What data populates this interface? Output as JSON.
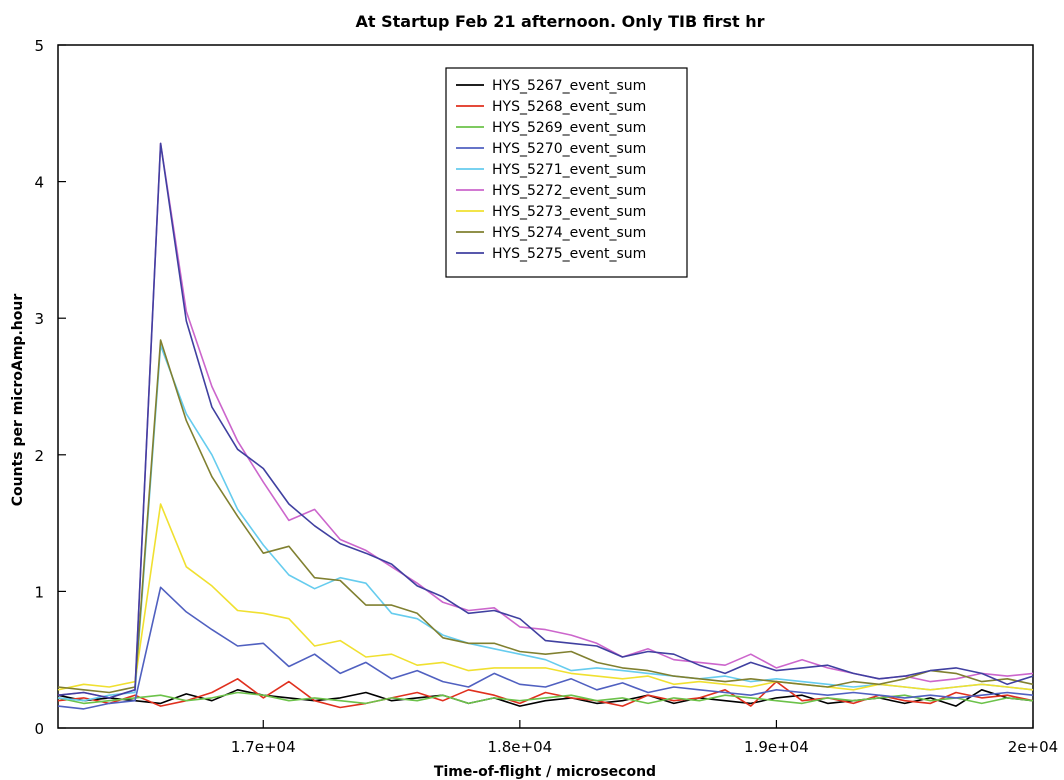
{
  "chart_data": {
    "type": "line",
    "title": "At Startup Feb 21 afternoon.  Only TIB first hr",
    "xlabel": "Time-of-flight / microsecond",
    "ylabel": "Counts per microAmp.hour",
    "xlim": [
      16200,
      20000
    ],
    "ylim": [
      0,
      5
    ],
    "xticks": [
      {
        "value": 17000,
        "label": "1.7e+04"
      },
      {
        "value": 18000,
        "label": "1.8e+04"
      },
      {
        "value": 19000,
        "label": "1.9e+04"
      },
      {
        "value": 20000,
        "label": "2e+04"
      }
    ],
    "yticks": [
      {
        "value": 0,
        "label": "0"
      },
      {
        "value": 1,
        "label": "1"
      },
      {
        "value": 2,
        "label": "2"
      },
      {
        "value": 3,
        "label": "3"
      },
      {
        "value": 4,
        "label": "4"
      },
      {
        "value": 5,
        "label": "5"
      }
    ],
    "grid": false,
    "legend_position": "top-center",
    "x": [
      16200,
      16300,
      16400,
      16500,
      16600,
      16700,
      16800,
      16900,
      17000,
      17100,
      17200,
      17300,
      17400,
      17500,
      17600,
      17700,
      17800,
      17900,
      18000,
      18100,
      18200,
      18300,
      18400,
      18500,
      18600,
      18700,
      18800,
      18900,
      19000,
      19100,
      19200,
      19300,
      19400,
      19500,
      19600,
      19700,
      19800,
      19900,
      20000
    ],
    "series": [
      {
        "name": "HYS_5267_event_sum",
        "color": "#000000",
        "values": [
          0.24,
          0.2,
          0.22,
          0.2,
          0.18,
          0.25,
          0.2,
          0.28,
          0.24,
          0.22,
          0.2,
          0.22,
          0.26,
          0.2,
          0.22,
          0.24,
          0.18,
          0.22,
          0.16,
          0.2,
          0.22,
          0.18,
          0.2,
          0.24,
          0.18,
          0.22,
          0.2,
          0.18,
          0.22,
          0.24,
          0.18,
          0.2,
          0.22,
          0.18,
          0.22,
          0.16,
          0.28,
          0.22,
          0.2
        ]
      },
      {
        "name": "HYS_5268_event_sum",
        "color": "#e0301e",
        "values": [
          0.2,
          0.22,
          0.18,
          0.24,
          0.16,
          0.2,
          0.26,
          0.36,
          0.22,
          0.34,
          0.2,
          0.15,
          0.18,
          0.22,
          0.26,
          0.2,
          0.28,
          0.24,
          0.18,
          0.26,
          0.22,
          0.2,
          0.16,
          0.24,
          0.2,
          0.22,
          0.28,
          0.16,
          0.34,
          0.2,
          0.22,
          0.18,
          0.24,
          0.2,
          0.18,
          0.26,
          0.22,
          0.24,
          0.2
        ]
      },
      {
        "name": "HYS_5269_event_sum",
        "color": "#6cc24a",
        "values": [
          0.22,
          0.18,
          0.2,
          0.22,
          0.24,
          0.2,
          0.22,
          0.26,
          0.24,
          0.2,
          0.22,
          0.2,
          0.18,
          0.22,
          0.2,
          0.24,
          0.18,
          0.22,
          0.2,
          0.22,
          0.24,
          0.2,
          0.22,
          0.18,
          0.22,
          0.2,
          0.24,
          0.22,
          0.2,
          0.18,
          0.22,
          0.2,
          0.22,
          0.24,
          0.2,
          0.22,
          0.18,
          0.22,
          0.2
        ]
      },
      {
        "name": "HYS_5270_event_sum",
        "color": "#5060c0",
        "values": [
          0.16,
          0.14,
          0.18,
          0.2,
          1.03,
          0.85,
          0.72,
          0.6,
          0.62,
          0.45,
          0.54,
          0.4,
          0.48,
          0.36,
          0.42,
          0.34,
          0.3,
          0.4,
          0.32,
          0.3,
          0.36,
          0.28,
          0.33,
          0.26,
          0.3,
          0.28,
          0.26,
          0.24,
          0.28,
          0.26,
          0.24,
          0.26,
          0.24,
          0.22,
          0.24,
          0.22,
          0.24,
          0.26,
          0.24
        ]
      },
      {
        "name": "HYS_5271_event_sum",
        "color": "#66ccee",
        "values": [
          0.22,
          0.2,
          0.24,
          0.26,
          2.8,
          2.3,
          2.0,
          1.6,
          1.34,
          1.12,
          1.02,
          1.1,
          1.06,
          0.84,
          0.8,
          0.68,
          0.62,
          0.58,
          0.54,
          0.5,
          0.42,
          0.44,
          0.42,
          0.4,
          0.38,
          0.36,
          0.38,
          0.34,
          0.36,
          0.34,
          0.32,
          0.3,
          0.32,
          0.3,
          0.28,
          0.3,
          0.32,
          0.3,
          0.28
        ]
      },
      {
        "name": "HYS_5272_event_sum",
        "color": "#cc66cc",
        "values": [
          0.24,
          0.26,
          0.22,
          0.28,
          4.28,
          3.05,
          2.5,
          2.1,
          1.8,
          1.52,
          1.6,
          1.38,
          1.3,
          1.18,
          1.06,
          0.92,
          0.86,
          0.88,
          0.74,
          0.72,
          0.68,
          0.62,
          0.52,
          0.58,
          0.5,
          0.48,
          0.46,
          0.54,
          0.44,
          0.5,
          0.44,
          0.4,
          0.36,
          0.38,
          0.34,
          0.36,
          0.4,
          0.38,
          0.4
        ]
      },
      {
        "name": "HYS_5273_event_sum",
        "color": "#f0e030",
        "values": [
          0.28,
          0.32,
          0.3,
          0.34,
          1.64,
          1.18,
          1.04,
          0.86,
          0.84,
          0.8,
          0.6,
          0.64,
          0.52,
          0.54,
          0.46,
          0.48,
          0.42,
          0.44,
          0.44,
          0.44,
          0.4,
          0.38,
          0.36,
          0.38,
          0.32,
          0.34,
          0.32,
          0.3,
          0.34,
          0.32,
          0.3,
          0.28,
          0.32,
          0.3,
          0.28,
          0.3,
          0.32,
          0.3,
          0.28
        ]
      },
      {
        "name": "HYS_5274_event_sum",
        "color": "#808030",
        "values": [
          0.3,
          0.28,
          0.26,
          0.3,
          2.84,
          2.25,
          1.84,
          1.55,
          1.28,
          1.33,
          1.1,
          1.08,
          0.9,
          0.9,
          0.84,
          0.66,
          0.62,
          0.62,
          0.56,
          0.54,
          0.56,
          0.48,
          0.44,
          0.42,
          0.38,
          0.36,
          0.34,
          0.36,
          0.34,
          0.32,
          0.3,
          0.34,
          0.32,
          0.36,
          0.42,
          0.4,
          0.34,
          0.36,
          0.32
        ]
      },
      {
        "name": "HYS_5275_event_sum",
        "color": "#4040a0",
        "values": [
          0.24,
          0.26,
          0.22,
          0.28,
          4.28,
          2.98,
          2.35,
          2.04,
          1.9,
          1.64,
          1.48,
          1.35,
          1.28,
          1.2,
          1.04,
          0.96,
          0.84,
          0.86,
          0.8,
          0.64,
          0.62,
          0.6,
          0.52,
          0.56,
          0.54,
          0.46,
          0.4,
          0.48,
          0.42,
          0.44,
          0.46,
          0.4,
          0.36,
          0.38,
          0.42,
          0.44,
          0.4,
          0.32,
          0.38
        ]
      }
    ]
  }
}
